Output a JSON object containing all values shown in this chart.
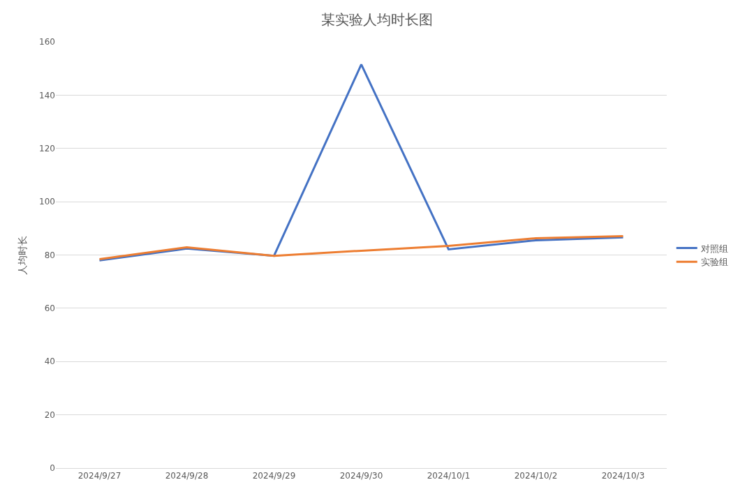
{
  "chart_data": {
    "type": "line",
    "title": "某实验人均时长图",
    "ylabel": "人均时长",
    "categories": [
      "2024/9/27",
      "2024/9/28",
      "2024/9/29",
      "2024/9/30",
      "2024/10/1",
      "2024/10/2",
      "2024/10/3"
    ],
    "series": [
      {
        "name": "对照组",
        "color": "#4472c4",
        "values": [
          78,
          82.4,
          79.7,
          151.5,
          82.1,
          85.5,
          86.6
        ]
      },
      {
        "name": "实验组",
        "color": "#ed7d31",
        "values": [
          78.4,
          82.9,
          79.7,
          81.6,
          83.4,
          86.3,
          87.1
        ]
      }
    ],
    "ylim": [
      0,
      160
    ],
    "yticks": [
      0,
      20,
      40,
      60,
      80,
      100,
      120,
      140,
      160
    ],
    "grid": "y",
    "legend": "right",
    "marker": "none",
    "line_style": "solid"
  }
}
